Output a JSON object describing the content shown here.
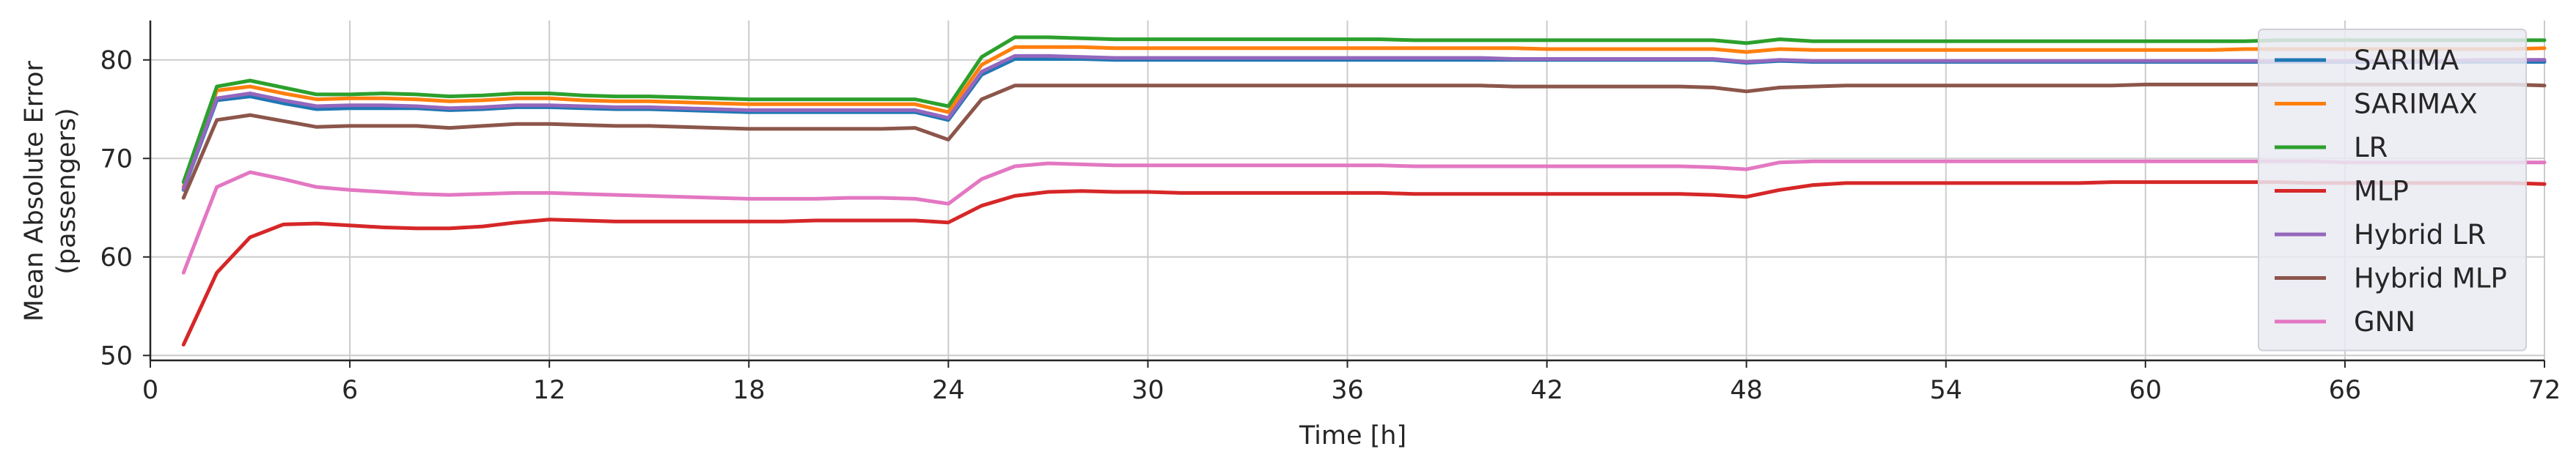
{
  "chart_data": {
    "type": "line",
    "xlabel": "Time [h]",
    "ylabel": [
      "Mean Absolute Error",
      "(passengers)"
    ],
    "xlim": [
      0,
      72
    ],
    "ylim": [
      49.5,
      84
    ],
    "xticks": [
      0,
      6,
      12,
      18,
      24,
      30,
      36,
      42,
      48,
      54,
      60,
      66,
      72
    ],
    "yticks": [
      50,
      60,
      70,
      80
    ],
    "grid": true,
    "legend_position": "right",
    "x": [
      1,
      2,
      3,
      4,
      5,
      6,
      7,
      8,
      9,
      10,
      11,
      12,
      13,
      14,
      15,
      16,
      17,
      18,
      19,
      20,
      21,
      22,
      23,
      24,
      25,
      26,
      27,
      28,
      29,
      30,
      31,
      32,
      33,
      34,
      35,
      36,
      37,
      38,
      39,
      40,
      41,
      42,
      43,
      44,
      45,
      46,
      47,
      48,
      49,
      50,
      51,
      52,
      53,
      54,
      55,
      56,
      57,
      58,
      59,
      60,
      61,
      62,
      63,
      64,
      65,
      66,
      67,
      68,
      69,
      70,
      71,
      72
    ],
    "series": [
      {
        "name": "SARIMA",
        "color": "#1f77b4",
        "values": [
          66.8,
          75.9,
          76.3,
          75.6,
          75.0,
          75.1,
          75.1,
          75.1,
          74.9,
          75.0,
          75.2,
          75.2,
          75.1,
          75.0,
          75.0,
          74.9,
          74.8,
          74.7,
          74.7,
          74.7,
          74.7,
          74.7,
          74.7,
          73.9,
          78.5,
          80.1,
          80.1,
          80.1,
          80.0,
          80.0,
          80.0,
          80.0,
          80.0,
          80.0,
          80.0,
          80.0,
          80.0,
          80.0,
          80.0,
          80.0,
          80.0,
          80.0,
          80.0,
          80.0,
          80.0,
          80.0,
          80.0,
          79.7,
          79.9,
          79.8,
          79.8,
          79.8,
          79.8,
          79.8,
          79.8,
          79.8,
          79.8,
          79.8,
          79.8,
          79.8,
          79.8,
          79.8,
          79.8,
          79.8,
          79.8,
          79.8,
          79.8,
          79.8,
          79.8,
          79.8,
          79.8,
          79.8
        ]
      },
      {
        "name": "SARIMAX",
        "color": "#ff7f0e",
        "values": [
          67.1,
          76.9,
          77.3,
          76.6,
          76.0,
          76.1,
          76.1,
          76.0,
          75.8,
          75.9,
          76.1,
          76.1,
          75.9,
          75.8,
          75.8,
          75.7,
          75.6,
          75.5,
          75.5,
          75.5,
          75.5,
          75.5,
          75.5,
          74.7,
          79.5,
          81.3,
          81.3,
          81.3,
          81.2,
          81.2,
          81.2,
          81.2,
          81.2,
          81.2,
          81.2,
          81.2,
          81.2,
          81.2,
          81.2,
          81.2,
          81.2,
          81.1,
          81.1,
          81.1,
          81.1,
          81.1,
          81.1,
          80.8,
          81.1,
          81.0,
          81.0,
          81.0,
          81.0,
          81.0,
          81.0,
          81.0,
          81.0,
          81.0,
          81.0,
          81.0,
          81.0,
          81.0,
          81.1,
          81.1,
          81.1,
          81.1,
          81.1,
          81.1,
          81.1,
          81.1,
          81.1,
          81.2
        ]
      },
      {
        "name": "LR",
        "color": "#2ca02c",
        "values": [
          67.6,
          77.3,
          77.9,
          77.2,
          76.5,
          76.5,
          76.6,
          76.5,
          76.3,
          76.4,
          76.6,
          76.6,
          76.4,
          76.3,
          76.3,
          76.2,
          76.1,
          76.0,
          76.0,
          76.0,
          76.0,
          76.0,
          76.0,
          75.3,
          80.3,
          82.3,
          82.3,
          82.2,
          82.1,
          82.1,
          82.1,
          82.1,
          82.1,
          82.1,
          82.1,
          82.1,
          82.1,
          82.0,
          82.0,
          82.0,
          82.0,
          82.0,
          82.0,
          82.0,
          82.0,
          82.0,
          82.0,
          81.7,
          82.1,
          81.9,
          81.9,
          81.9,
          81.9,
          81.9,
          81.9,
          81.9,
          81.9,
          81.9,
          81.9,
          81.9,
          81.9,
          81.9,
          81.9,
          82.0,
          82.0,
          82.0,
          82.0,
          82.0,
          82.0,
          82.0,
          82.0,
          82.0
        ]
      },
      {
        "name": "MLP",
        "color": "#d62728",
        "values": [
          51.1,
          58.4,
          62.0,
          63.3,
          63.4,
          63.2,
          63.0,
          62.9,
          62.9,
          63.1,
          63.5,
          63.8,
          63.7,
          63.6,
          63.6,
          63.6,
          63.6,
          63.6,
          63.6,
          63.7,
          63.7,
          63.7,
          63.7,
          63.5,
          65.2,
          66.2,
          66.6,
          66.7,
          66.6,
          66.6,
          66.5,
          66.5,
          66.5,
          66.5,
          66.5,
          66.5,
          66.5,
          66.4,
          66.4,
          66.4,
          66.4,
          66.4,
          66.4,
          66.4,
          66.4,
          66.4,
          66.3,
          66.1,
          66.8,
          67.3,
          67.5,
          67.5,
          67.5,
          67.5,
          67.5,
          67.5,
          67.5,
          67.5,
          67.6,
          67.6,
          67.6,
          67.6,
          67.6,
          67.6,
          67.5,
          67.5,
          67.5,
          67.5,
          67.5,
          67.5,
          67.5,
          67.4
        ]
      },
      {
        "name": "Hybrid LR",
        "color": "#9467bd",
        "values": [
          66.9,
          76.1,
          76.6,
          75.9,
          75.3,
          75.4,
          75.4,
          75.3,
          75.1,
          75.2,
          75.4,
          75.4,
          75.3,
          75.2,
          75.2,
          75.1,
          75.0,
          74.9,
          74.9,
          74.9,
          74.9,
          74.9,
          74.9,
          74.1,
          78.8,
          80.4,
          80.4,
          80.3,
          80.2,
          80.2,
          80.2,
          80.2,
          80.2,
          80.2,
          80.2,
          80.2,
          80.2,
          80.2,
          80.2,
          80.2,
          80.1,
          80.1,
          80.1,
          80.1,
          80.1,
          80.1,
          80.1,
          79.8,
          80.0,
          79.9,
          79.9,
          79.9,
          79.9,
          79.9,
          79.9,
          79.9,
          79.9,
          79.9,
          79.9,
          79.9,
          79.9,
          79.9,
          79.9,
          79.9,
          79.9,
          79.9,
          79.9,
          79.9,
          79.9,
          80.0,
          80.0,
          80.0
        ]
      },
      {
        "name": "Hybrid MLP",
        "color": "#8c564b",
        "values": [
          66.0,
          73.9,
          74.4,
          73.8,
          73.2,
          73.3,
          73.3,
          73.3,
          73.1,
          73.3,
          73.5,
          73.5,
          73.4,
          73.3,
          73.3,
          73.2,
          73.1,
          73.0,
          73.0,
          73.0,
          73.0,
          73.0,
          73.1,
          71.9,
          76.0,
          77.4,
          77.4,
          77.4,
          77.4,
          77.4,
          77.4,
          77.4,
          77.4,
          77.4,
          77.4,
          77.4,
          77.4,
          77.4,
          77.4,
          77.4,
          77.3,
          77.3,
          77.3,
          77.3,
          77.3,
          77.3,
          77.2,
          76.8,
          77.2,
          77.3,
          77.4,
          77.4,
          77.4,
          77.4,
          77.4,
          77.4,
          77.4,
          77.4,
          77.4,
          77.5,
          77.5,
          77.5,
          77.5,
          77.5,
          77.5,
          77.5,
          77.5,
          77.5,
          77.5,
          77.5,
          77.5,
          77.4
        ]
      },
      {
        "name": "GNN",
        "color": "#e377c2",
        "values": [
          58.4,
          67.1,
          68.6,
          67.9,
          67.1,
          66.8,
          66.6,
          66.4,
          66.3,
          66.4,
          66.5,
          66.5,
          66.4,
          66.3,
          66.2,
          66.1,
          66.0,
          65.9,
          65.9,
          65.9,
          66.0,
          66.0,
          65.9,
          65.4,
          67.9,
          69.2,
          69.5,
          69.4,
          69.3,
          69.3,
          69.3,
          69.3,
          69.3,
          69.3,
          69.3,
          69.3,
          69.3,
          69.2,
          69.2,
          69.2,
          69.2,
          69.2,
          69.2,
          69.2,
          69.2,
          69.2,
          69.1,
          68.9,
          69.6,
          69.7,
          69.7,
          69.7,
          69.7,
          69.7,
          69.7,
          69.7,
          69.7,
          69.7,
          69.7,
          69.7,
          69.7,
          69.7,
          69.7,
          69.7,
          69.7,
          69.6,
          69.6,
          69.6,
          69.6,
          69.6,
          69.6,
          69.6
        ]
      }
    ]
  }
}
